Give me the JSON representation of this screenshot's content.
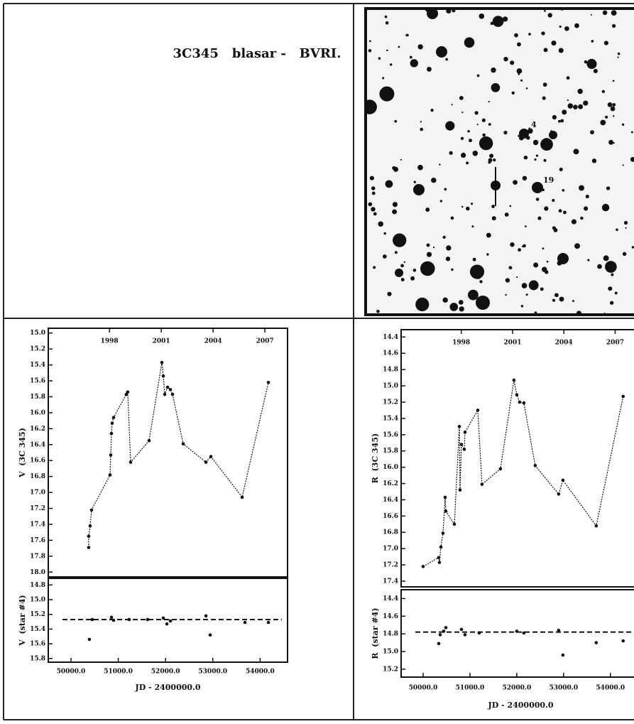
{
  "header": {
    "title": "3C345   blasar -   BVRI."
  },
  "finder_chart": {
    "labels": [
      "4",
      "19"
    ]
  },
  "chart_data": [
    {
      "type": "line",
      "ylabel": "V  (3C 345)",
      "xlim": [
        49520,
        54580
      ],
      "ylim": [
        18.06,
        14.94
      ],
      "x2ticks": [
        {
          "value": 50814,
          "label": "1998"
        },
        {
          "value": 51910,
          "label": "2001"
        },
        {
          "value": 53005,
          "label": "2004"
        },
        {
          "value": 54101,
          "label": "2007"
        }
      ],
      "yticks": [
        {
          "value": 15.0,
          "label": "15.0"
        },
        {
          "value": 15.2,
          "label": "15.2"
        },
        {
          "value": 15.4,
          "label": "15.4"
        },
        {
          "value": 15.6,
          "label": "15.6"
        },
        {
          "value": 15.8,
          "label": "15.8"
        },
        {
          "value": 16.0,
          "label": "16.0"
        },
        {
          "value": 16.2,
          "label": "16.2"
        },
        {
          "value": 16.4,
          "label": "16.4"
        },
        {
          "value": 16.6,
          "label": "16.6"
        },
        {
          "value": 16.8,
          "label": "16.8"
        },
        {
          "value": 17.0,
          "label": "17.0"
        },
        {
          "value": 17.2,
          "label": "17.2"
        },
        {
          "value": 17.4,
          "label": "17.4"
        },
        {
          "value": 17.6,
          "label": "17.6"
        },
        {
          "value": 17.8,
          "label": "17.8"
        },
        {
          "value": 18.0,
          "label": "18.0"
        }
      ],
      "color": "#111111",
      "x": [
        50375,
        50375,
        50405,
        50435,
        50826,
        50841,
        50856,
        50871,
        50901,
        51170,
        51200,
        51262,
        51652,
        51922,
        51953,
        51983,
        52043,
        52103,
        52148,
        52373,
        52854,
        52959,
        53620,
        54175
      ],
      "values": [
        17.69,
        17.55,
        17.42,
        17.22,
        16.78,
        16.53,
        16.26,
        16.13,
        16.06,
        15.77,
        15.74,
        16.62,
        16.35,
        15.37,
        15.54,
        15.77,
        15.68,
        15.71,
        15.77,
        16.39,
        16.62,
        16.55,
        17.06,
        15.62
      ]
    },
    {
      "type": "scatter",
      "ylabel": "V  (star #4)",
      "xlabel": "JD - 2400000.0",
      "xlim": [
        49520,
        54580
      ],
      "ylim": [
        15.85,
        14.71
      ],
      "xticks": [
        {
          "value": 50000,
          "label": "50000.0"
        },
        {
          "value": 51000,
          "label": "51000.0"
        },
        {
          "value": 52000,
          "label": "52000.0"
        },
        {
          "value": 53000,
          "label": "53000.0"
        },
        {
          "value": 54000,
          "label": "54000.0"
        }
      ],
      "yticks": [
        {
          "value": 14.8,
          "label": "14.8"
        },
        {
          "value": 15.0,
          "label": "15.0"
        },
        {
          "value": 15.2,
          "label": "15.2"
        },
        {
          "value": 15.4,
          "label": "15.4"
        },
        {
          "value": 15.6,
          "label": "15.6"
        },
        {
          "value": 15.8,
          "label": "15.8"
        }
      ],
      "color": "#111111",
      "reference_line": 15.27,
      "x": [
        50390,
        50450,
        50856,
        50901,
        51232,
        51622,
        51953,
        52028,
        52103,
        52854,
        52944,
        53680,
        54175
      ],
      "values": [
        15.54,
        15.27,
        15.24,
        15.28,
        15.27,
        15.27,
        15.25,
        15.33,
        15.29,
        15.22,
        15.48,
        15.31,
        15.31
      ]
    },
    {
      "type": "line",
      "ylabel": "R  (3C 345)",
      "xlim": [
        49530,
        54640
      ],
      "ylim": [
        17.47,
        14.31
      ],
      "x2ticks": [
        {
          "value": 50814,
          "label": "1998"
        },
        {
          "value": 51910,
          "label": "2001"
        },
        {
          "value": 53005,
          "label": "2004"
        },
        {
          "value": 54101,
          "label": "2007"
        }
      ],
      "yticks": [
        {
          "value": 14.4,
          "label": "14.4"
        },
        {
          "value": 14.6,
          "label": "14.6"
        },
        {
          "value": 14.8,
          "label": "14.8"
        },
        {
          "value": 15.0,
          "label": "15.0"
        },
        {
          "value": 15.2,
          "label": "15.2"
        },
        {
          "value": 15.4,
          "label": "15.4"
        },
        {
          "value": 15.6,
          "label": "15.6"
        },
        {
          "value": 15.8,
          "label": "15.8"
        },
        {
          "value": 16.0,
          "label": "16.0"
        },
        {
          "value": 16.2,
          "label": "16.2"
        },
        {
          "value": 16.4,
          "label": "16.4"
        },
        {
          "value": 16.6,
          "label": "16.6"
        },
        {
          "value": 16.8,
          "label": "16.8"
        },
        {
          "value": 17.0,
          "label": "17.0"
        },
        {
          "value": 17.2,
          "label": "17.2"
        },
        {
          "value": 17.4,
          "label": "17.4"
        }
      ],
      "color": "#111111",
      "x": [
        50000,
        50333,
        50348,
        50379,
        50424,
        50470,
        50485,
        50667,
        50773,
        50788,
        50818,
        50879,
        50894,
        51167,
        51257,
        51651,
        51939,
        52000,
        52060,
        52151,
        52394,
        52894,
        52985,
        53697,
        54272
      ],
      "values": [
        17.22,
        17.11,
        17.17,
        16.98,
        16.81,
        16.37,
        16.54,
        16.7,
        15.5,
        16.28,
        15.72,
        15.78,
        15.57,
        15.3,
        16.21,
        16.02,
        14.93,
        15.11,
        15.2,
        15.21,
        15.98,
        16.33,
        16.16,
        16.72,
        15.13
      ]
    },
    {
      "type": "scatter",
      "ylabel": "R  (star #4)",
      "xlabel": "JD - 2400000.0",
      "xlim": [
        49530,
        54640
      ],
      "ylim": [
        15.29,
        14.3
      ],
      "xticks": [
        {
          "value": 50000,
          "label": "50000.0"
        },
        {
          "value": 51000,
          "label": "51000.0"
        },
        {
          "value": 52000,
          "label": "52000.0"
        },
        {
          "value": 53000,
          "label": "53000.0"
        },
        {
          "value": 54000,
          "label": "54000.0"
        }
      ],
      "yticks": [
        {
          "value": 14.4,
          "label": "14.4"
        },
        {
          "value": 14.6,
          "label": "14.6"
        },
        {
          "value": 14.8,
          "label": "14.8"
        },
        {
          "value": 15.0,
          "label": "15.0"
        },
        {
          "value": 15.2,
          "label": "15.2"
        }
      ],
      "color": "#111111",
      "reference_line": 14.78,
      "x": [
        50333,
        50364,
        50439,
        50485,
        50818,
        50894,
        51197,
        52000,
        52151,
        52894,
        52985,
        53697,
        54272
      ],
      "values": [
        14.91,
        14.81,
        14.77,
        14.73,
        14.75,
        14.81,
        14.79,
        14.77,
        14.79,
        14.76,
        15.04,
        14.9,
        14.88
      ]
    }
  ]
}
